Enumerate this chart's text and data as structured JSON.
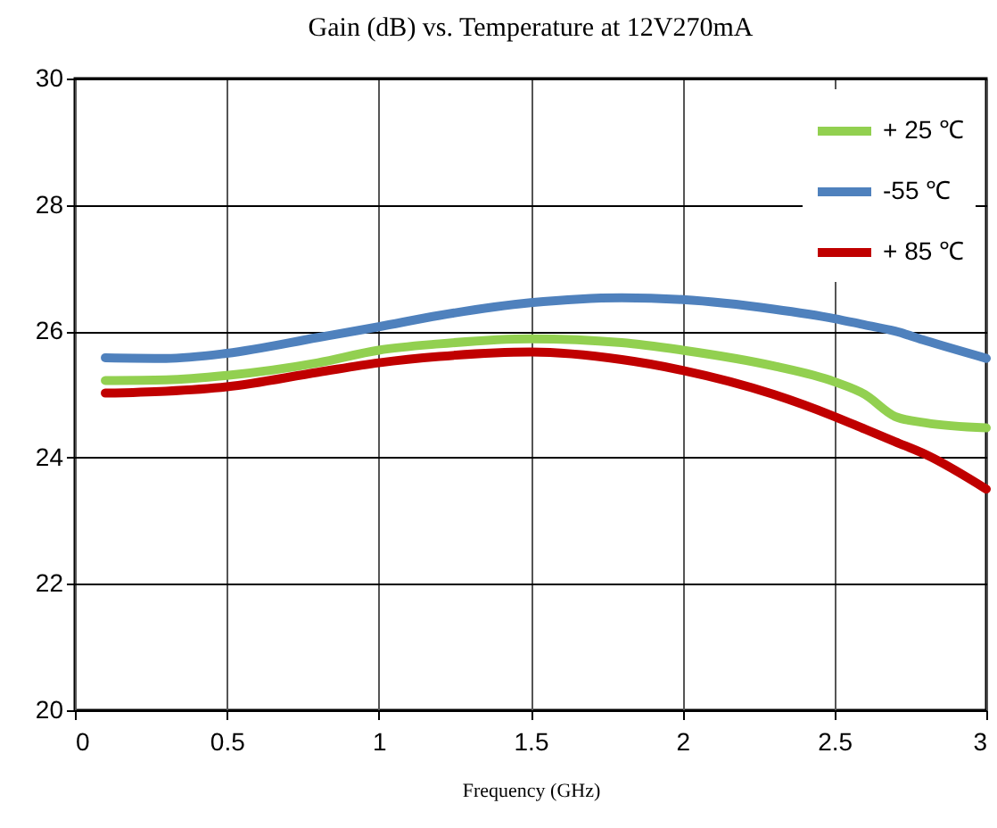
{
  "chart_data": {
    "type": "line",
    "title": "Gain (dB) vs. Temperature at 12V270mA",
    "xlabel": "Frequency (GHz)",
    "x": [
      0.1,
      0.3,
      0.5,
      0.8,
      1.0,
      1.2,
      1.5,
      1.8,
      2.0,
      2.3,
      2.5,
      2.6,
      2.7,
      2.8,
      3.0
    ],
    "series": [
      {
        "name": "+ 25 ℃",
        "color": "#92d050",
        "values": [
          25.22,
          25.23,
          25.3,
          25.5,
          25.7,
          25.8,
          25.88,
          25.82,
          25.7,
          25.45,
          25.2,
          25.0,
          24.65,
          24.55,
          24.47
        ]
      },
      {
        "name": "-55 ℃",
        "color": "#4f81bd",
        "values": [
          25.58,
          25.57,
          25.65,
          25.9,
          26.07,
          26.25,
          26.45,
          26.53,
          26.5,
          26.35,
          26.2,
          26.1,
          26.0,
          25.85,
          25.57
        ]
      },
      {
        "name": "+ 85 ℃",
        "color": "#c00000",
        "values": [
          25.02,
          25.05,
          25.12,
          25.35,
          25.5,
          25.6,
          25.67,
          25.55,
          25.38,
          25.0,
          24.65,
          24.45,
          24.25,
          24.05,
          23.5
        ]
      }
    ],
    "xlim": [
      0,
      3
    ],
    "xticks": [
      0,
      0.5,
      1,
      1.5,
      2,
      2.5,
      3
    ],
    "ylim": [
      20,
      30
    ],
    "yticks": [
      20,
      22,
      24,
      26,
      28,
      30
    ],
    "grid": true,
    "legend": "top right",
    "marker": "none",
    "line_style": "solid"
  }
}
